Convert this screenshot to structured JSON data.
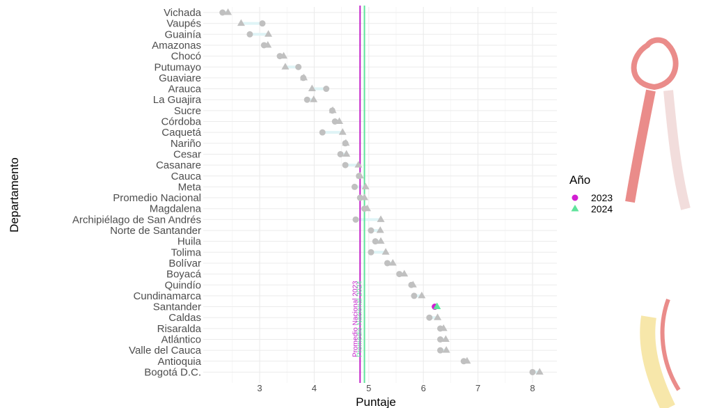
{
  "chart_data": {
    "type": "dot-range",
    "xlabel": "Puntaje",
    "ylabel": "Departamento",
    "xlim": [
      2.1,
      8.4
    ],
    "xticks": [
      3,
      4,
      5,
      6,
      7,
      8
    ],
    "grid": true,
    "legend": {
      "title": "Año",
      "placement": "right",
      "entries": [
        {
          "label": "2023",
          "shape": "circle",
          "color": "#d21ed2"
        },
        {
          "label": "2024",
          "shape": "triangle",
          "color": "#5fe39b"
        }
      ]
    },
    "reference_lines": [
      {
        "label": "Promedio Nacional 2023",
        "value": 4.84,
        "color": "#c21fc9"
      },
      {
        "label": "Promedio Nacional 2024",
        "value": 4.92,
        "color": "#5fe39b"
      }
    ],
    "categories": [
      "Vichada",
      "Vaupés",
      "Guainía",
      "Amazonas",
      "Chocó",
      "Putumayo",
      "Guaviare",
      "Arauca",
      "La Guajira",
      "Sucre",
      "Córdoba",
      "Caquetá",
      "Nariño",
      "Cesar",
      "Casanare",
      "Cauca",
      "Meta",
      "Promedio Nacional",
      "Magdalena",
      "Archipiélago de San Andrés",
      "Norte de Santander",
      "Huila",
      "Tolima",
      "Bolívar",
      "Boyacá",
      "Quindío",
      "Cundinamarca",
      "Santander",
      "Caldas",
      "Risaralda",
      "Atlántico",
      "Valle del Cauca",
      "Antioquia",
      "Bogotá D.C."
    ],
    "series": [
      {
        "name": "2023",
        "values": [
          2.32,
          3.05,
          2.82,
          3.08,
          3.37,
          3.71,
          3.8,
          4.22,
          3.87,
          4.33,
          4.38,
          4.15,
          4.57,
          4.48,
          4.57,
          4.82,
          4.74,
          4.84,
          4.92,
          4.76,
          5.04,
          5.12,
          5.04,
          5.34,
          5.56,
          5.78,
          5.83,
          6.21,
          6.11,
          6.31,
          6.31,
          6.31,
          6.74,
          8.0
        ]
      },
      {
        "name": "2024",
        "values": [
          2.42,
          2.66,
          3.16,
          3.15,
          3.44,
          3.47,
          3.81,
          3.96,
          3.99,
          4.34,
          4.46,
          4.52,
          4.58,
          4.59,
          4.81,
          4.84,
          4.94,
          4.92,
          4.97,
          5.22,
          5.21,
          5.22,
          5.31,
          5.44,
          5.65,
          5.81,
          5.97,
          6.25,
          6.26,
          6.37,
          6.41,
          6.42,
          6.8,
          8.13
        ]
      }
    ],
    "highlight_category": "Santander"
  },
  "colors": {
    "grey_point": "#c0c0c0",
    "segment": "#dff4f6",
    "grid": "#ebebeb"
  }
}
